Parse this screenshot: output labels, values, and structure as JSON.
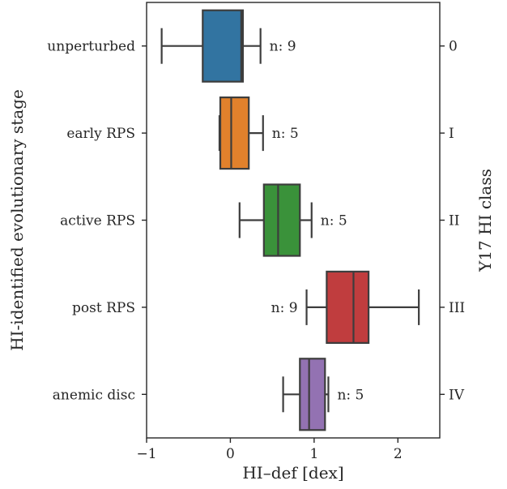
{
  "chart_data": {
    "type": "box",
    "orientation": "horizontal",
    "xlabel": "HI–def [dex]",
    "ylabel": "HI-identified evolutionary stage",
    "ylabel_right": "Y17 HI class",
    "xlim": [
      -1.0,
      2.5
    ],
    "xticks": [
      -1,
      0,
      1,
      2
    ],
    "xtick_labels": [
      "−1",
      "0",
      "1",
      "2"
    ],
    "grid": false,
    "legend": "none",
    "categories": [
      "unperturbed",
      "early RPS",
      "active RPS",
      "post RPS",
      "anemic disc"
    ],
    "right_tick_labels": [
      "0",
      "I",
      "II",
      "III",
      "IV"
    ],
    "boxes": [
      {
        "category": "unperturbed",
        "whisker_low": -0.82,
        "q1": -0.33,
        "median": 0.13,
        "q3": 0.15,
        "whisker_high": 0.36,
        "n_label": "n: 9",
        "color": "#3274a1"
      },
      {
        "category": "early RPS",
        "whisker_low": -0.13,
        "q1": -0.12,
        "median": 0.01,
        "q3": 0.22,
        "whisker_high": 0.39,
        "n_label": "n: 5",
        "color": "#e1812c"
      },
      {
        "category": "active RPS",
        "whisker_low": 0.11,
        "q1": 0.4,
        "median": 0.57,
        "q3": 0.83,
        "whisker_high": 0.97,
        "n_label": "n: 5",
        "color": "#3a923a"
      },
      {
        "category": "post RPS",
        "whisker_low": 0.91,
        "q1": 1.15,
        "median": 1.47,
        "q3": 1.65,
        "whisker_high": 2.25,
        "n_label": "n: 9",
        "color": "#c03d3e"
      },
      {
        "category": "anemic disc",
        "whisker_low": 0.63,
        "q1": 0.83,
        "median": 0.94,
        "q3": 1.13,
        "whisker_high": 1.17,
        "n_label": "n: 5",
        "color": "#9372b2"
      }
    ]
  }
}
